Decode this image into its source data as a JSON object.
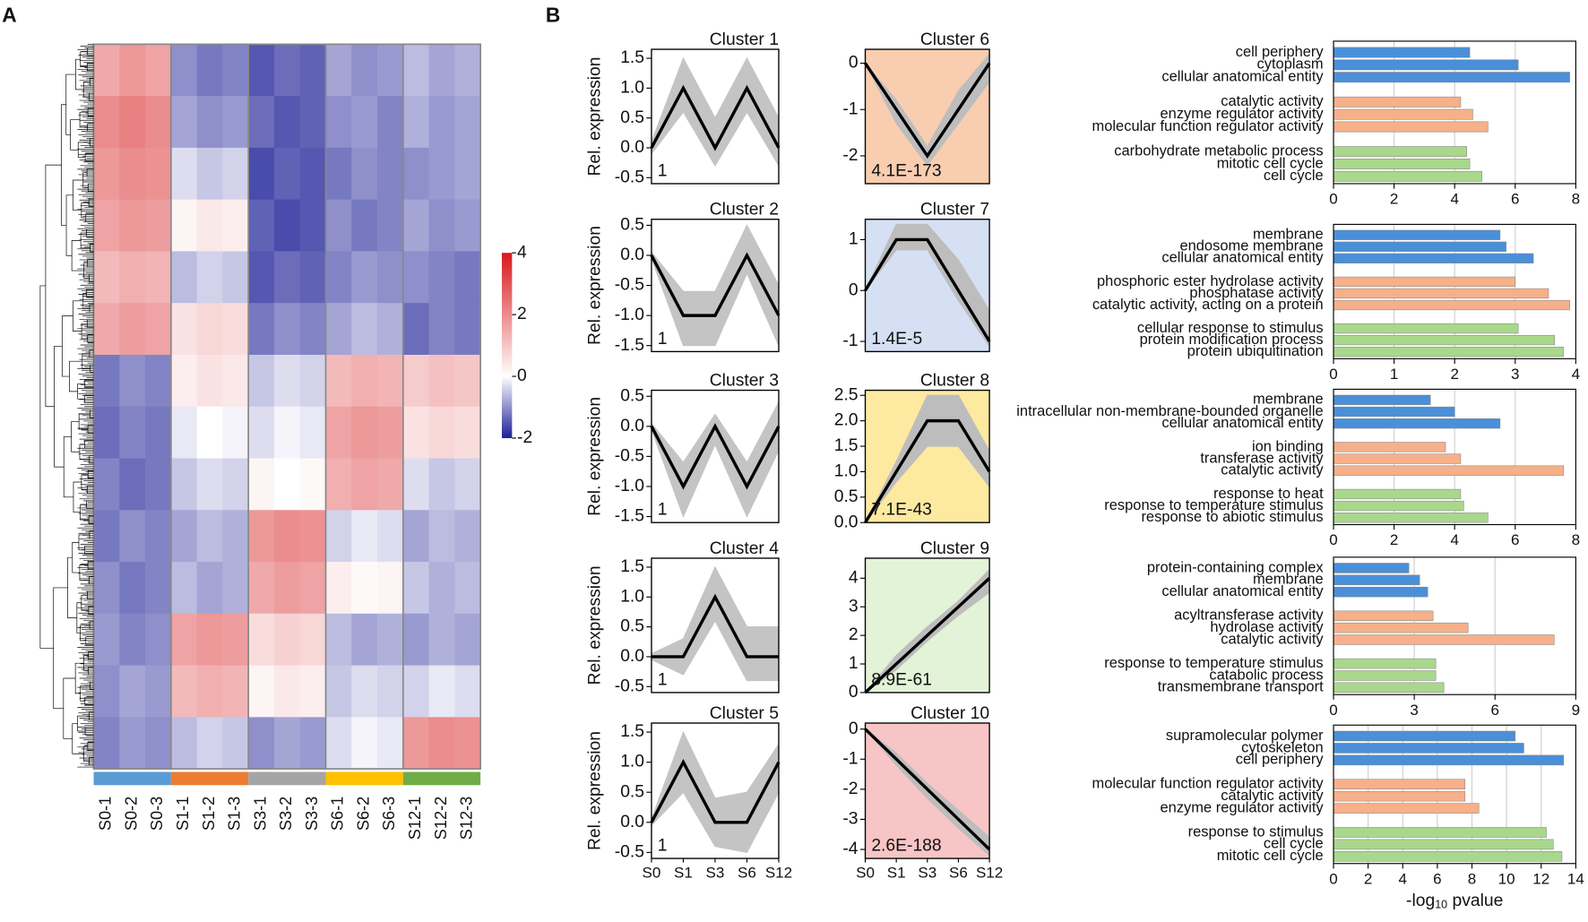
{
  "chart_data": [
    {
      "type": "heatmap",
      "panel": "A",
      "columns": [
        "S0-1",
        "S0-2",
        "S0-3",
        "S1-1",
        "S1-2",
        "S1-3",
        "S3-1",
        "S3-2",
        "S3-3",
        "S6-1",
        "S6-2",
        "S6-3",
        "S12-1",
        "S12-2",
        "S12-3"
      ],
      "group_colors": [
        "#5b9bd5",
        "#ed7d31",
        "#a5a5a5",
        "#ffc000",
        "#70ad47"
      ],
      "colors": [
        "#1c1f96",
        "#ffffff",
        "#d7191c"
      ],
      "clim": [
        -2,
        4
      ],
      "cticks": [
        4,
        2,
        0,
        -2
      ],
      "values": [
        [
          1.5,
          1.8,
          1.6,
          -1,
          -1.2,
          -1.1,
          -1.5,
          -1.3,
          -1.4,
          -0.8,
          -1,
          -0.9,
          -0.6,
          -0.8,
          -0.7
        ],
        [
          2,
          2.2,
          2,
          -0.8,
          -1,
          -0.9,
          -1.3,
          -1.5,
          -1.4,
          -1,
          -0.9,
          -1.1,
          -0.7,
          -0.9,
          -0.8
        ],
        [
          1.8,
          2,
          1.9,
          -0.3,
          -0.5,
          -0.4,
          -1.6,
          -1.4,
          -1.5,
          -1.2,
          -1,
          -1.1,
          -1,
          -0.9,
          -0.8
        ],
        [
          1.6,
          1.8,
          1.7,
          0.2,
          0.4,
          0.3,
          -1.4,
          -1.6,
          -1.5,
          -1,
          -1.2,
          -1.1,
          -0.8,
          -1,
          -0.9
        ],
        [
          1.2,
          1.4,
          1.3,
          -0.6,
          -0.4,
          -0.5,
          -1.5,
          -1.3,
          -1.4,
          -1.1,
          -0.9,
          -1,
          -1,
          -1.1,
          -1.2
        ],
        [
          1.5,
          1.7,
          1.6,
          0.5,
          0.7,
          0.6,
          -1.2,
          -1,
          -1.1,
          -0.8,
          -0.6,
          -0.7,
          -1.3,
          -1.1,
          -1.2
        ],
        [
          -1.2,
          -1,
          -1.1,
          0.3,
          0.5,
          0.4,
          -0.5,
          -0.3,
          -0.4,
          1.2,
          1.4,
          1.3,
          0.9,
          1.1,
          1
        ],
        [
          -1.3,
          -1.1,
          -1.2,
          -0.2,
          0,
          -0.1,
          -0.3,
          -0.1,
          -0.2,
          1.6,
          1.8,
          1.7,
          0.5,
          0.7,
          0.6
        ],
        [
          -1.1,
          -1.3,
          -1.2,
          -0.5,
          -0.3,
          -0.4,
          0.2,
          0,
          0.1,
          1.4,
          1.6,
          1.5,
          -0.3,
          -0.5,
          -0.4
        ],
        [
          -1.2,
          -1,
          -1.1,
          -0.8,
          -0.6,
          -0.7,
          1.8,
          2,
          1.9,
          -0.4,
          -0.2,
          -0.3,
          -0.8,
          -0.6,
          -0.7
        ],
        [
          -1,
          -1.2,
          -1.1,
          -0.6,
          -0.8,
          -0.7,
          1.5,
          1.7,
          1.6,
          0.3,
          0.1,
          0.2,
          -0.5,
          -0.7,
          -0.6
        ],
        [
          -0.9,
          -1.1,
          -1,
          1.6,
          1.8,
          1.7,
          0.6,
          0.8,
          0.7,
          -0.6,
          -0.8,
          -0.7,
          -0.9,
          -0.7,
          -0.8
        ],
        [
          -1,
          -0.8,
          -0.9,
          1.2,
          1.4,
          1.3,
          0.2,
          0.4,
          0.3,
          -0.5,
          -0.3,
          -0.4,
          -0.4,
          -0.2,
          -0.3
        ],
        [
          -1.1,
          -0.9,
          -1,
          -0.6,
          -0.4,
          -0.5,
          -1,
          -0.8,
          -0.9,
          -0.3,
          -0.1,
          -0.2,
          1.8,
          2,
          1.9
        ]
      ]
    },
    {
      "type": "line",
      "panel": "B",
      "title": "Cluster 1",
      "ylabel": "Rel. expression",
      "annotation": "1",
      "background": "#ffffff",
      "color": "#000000",
      "band_color": "#c4c4c4",
      "values": [
        0,
        1,
        0,
        1,
        0
      ],
      "band_low": [
        -0.1,
        0.6,
        -0.3,
        0.6,
        -0.3
      ],
      "band_high": [
        0.1,
        1.5,
        0.5,
        1.5,
        0.5
      ],
      "ylim": [
        -0.6,
        1.65
      ],
      "yticks": [
        {
          "value": -0.5,
          "label": "-0.5"
        },
        {
          "value": 0,
          "label": "0.0"
        },
        0.5,
        {
          "value": 1,
          "label": "1.0"
        },
        1.5
      ]
    },
    {
      "type": "line",
      "title": "Cluster 2",
      "ylabel": "Rel. expression",
      "annotation": "1",
      "background": "#ffffff",
      "color": "#000000",
      "band_color": "#c4c4c4",
      "values": [
        0,
        -1,
        -1,
        0,
        -1
      ],
      "band_low": [
        -0.05,
        -1.5,
        -1.5,
        -0.3,
        -1.5
      ],
      "band_high": [
        0.05,
        -0.6,
        -0.6,
        0.5,
        -0.5
      ],
      "ylim": [
        -1.6,
        0.6
      ],
      "yticks": [
        0.5,
        {
          "value": 0,
          "label": "0.0"
        },
        -0.5,
        {
          "value": -1,
          "label": "-1.0"
        },
        -1.5
      ]
    },
    {
      "type": "line",
      "title": "Cluster 3",
      "ylabel": "Rel. expression",
      "annotation": "1",
      "background": "#ffffff",
      "color": "#000000",
      "band_color": "#c4c4c4",
      "values": [
        0,
        -1,
        0,
        -1,
        0
      ],
      "band_low": [
        -0.05,
        -1.5,
        -0.3,
        -1.5,
        -0.4
      ],
      "band_high": [
        0.05,
        -0.6,
        0.2,
        -0.6,
        0.4
      ],
      "ylim": [
        -1.6,
        0.6
      ],
      "yticks": [
        0.5,
        {
          "value": 0,
          "label": "0.0"
        },
        -0.5,
        {
          "value": -1,
          "label": "-1.0"
        },
        -1.5
      ]
    },
    {
      "type": "line",
      "title": "Cluster 4",
      "ylabel": "Rel. expression",
      "annotation": "1",
      "background": "#ffffff",
      "color": "#000000",
      "band_color": "#c4c4c4",
      "values": [
        0,
        0,
        1,
        0,
        0
      ],
      "band_low": [
        -0.05,
        -0.3,
        0.6,
        -0.4,
        -0.4
      ],
      "band_high": [
        0.05,
        0.3,
        1.5,
        0.5,
        0.5
      ],
      "ylim": [
        -0.6,
        1.65
      ],
      "yticks": [
        {
          "value": -0.5,
          "label": "-0.5"
        },
        {
          "value": 0,
          "label": "0.0"
        },
        0.5,
        {
          "value": 1,
          "label": "1.0"
        },
        1.5
      ]
    },
    {
      "type": "line",
      "title": "Cluster 5",
      "ylabel": "Rel. expression",
      "annotation": "1",
      "background": "#ffffff",
      "color": "#000000",
      "band_color": "#c4c4c4",
      "categories": [
        "S0",
        "S1",
        "S3",
        "S6",
        "S12"
      ],
      "values": [
        0,
        1,
        0,
        0,
        1
      ],
      "band_low": [
        -0.05,
        0.5,
        -0.4,
        -0.5,
        0.5
      ],
      "band_high": [
        0.05,
        1.5,
        0.4,
        0.5,
        1.3
      ],
      "ylim": [
        -0.6,
        1.65
      ],
      "yticks": [
        {
          "value": -0.5,
          "label": "-0.5"
        },
        {
          "value": 0,
          "label": "0.0"
        },
        0.5,
        {
          "value": 1,
          "label": "1.0"
        },
        1.5
      ]
    },
    {
      "type": "line",
      "title": "Cluster 6",
      "annotation": "4.1E-173",
      "background": "#f9cdb0",
      "color": "#000000",
      "band_color": "#bdbdbd",
      "values": [
        0,
        -1,
        -2,
        -1,
        0
      ],
      "band_low": [
        0,
        -1.3,
        -2.2,
        -1.3,
        -0.4
      ],
      "band_high": [
        0,
        -0.8,
        -1.8,
        -0.6,
        0.2
      ],
      "ylim": [
        -2.6,
        0.3
      ],
      "yticks": [
        0,
        -1,
        -2
      ]
    },
    {
      "type": "line",
      "title": "Cluster 7",
      "annotation": "1.4E-5",
      "background": "#d6e0f5",
      "color": "#000000",
      "band_color": "#bdbdbd",
      "values": [
        0,
        1,
        1,
        0,
        -1
      ],
      "band_low": [
        0,
        0.8,
        0.8,
        -0.2,
        -1.1
      ],
      "band_high": [
        0,
        1.3,
        1.3,
        0.6,
        -0.4
      ],
      "ylim": [
        -1.2,
        1.4
      ],
      "yticks": [
        1,
        0,
        -1
      ]
    },
    {
      "type": "line",
      "title": "Cluster 8",
      "annotation": "7.1E-43",
      "background": "#fde9a0",
      "color": "#000000",
      "band_color": "#bdbdbd",
      "values": [
        0,
        1,
        2,
        2,
        1
      ],
      "band_low": [
        0,
        0.8,
        1.5,
        1.5,
        0.7
      ],
      "band_high": [
        0,
        1.2,
        2.5,
        2.5,
        1.4
      ],
      "ylim": [
        0,
        2.6
      ],
      "yticks": [
        {
          "value": 0,
          "label": "0.0"
        },
        0.5,
        {
          "value": 1,
          "label": "1.0"
        },
        1.5,
        {
          "value": 2,
          "label": "2.0"
        },
        2.5
      ]
    },
    {
      "type": "line",
      "title": "Cluster 9",
      "annotation": "8.9E-61",
      "background": "#e3f3d8",
      "color": "#000000",
      "band_color": "#bdbdbd",
      "values": [
        0,
        1,
        2,
        3,
        4
      ],
      "band_low": [
        0,
        0.8,
        1.8,
        2.7,
        3.5
      ],
      "band_high": [
        0,
        1.3,
        2.3,
        3.2,
        4.3
      ],
      "ylim": [
        0,
        4.7
      ],
      "yticks": [
        0,
        1,
        2,
        3,
        4
      ]
    },
    {
      "type": "line",
      "title": "Cluster 10",
      "annotation": "2.6E-188",
      "background": "#f7c5c5",
      "color": "#000000",
      "band_color": "#bdbdbd",
      "categories": [
        "S0",
        "S1",
        "S3",
        "S6",
        "S12"
      ],
      "values": [
        0,
        -1,
        -2,
        -3,
        -4
      ],
      "band_low": [
        0,
        -1.2,
        -2.3,
        -3.3,
        -4.2
      ],
      "band_high": [
        0,
        -0.8,
        -1.8,
        -2.7,
        -3.6
      ],
      "ylim": [
        -4.3,
        0.2
      ],
      "yticks": [
        0,
        -1,
        -2,
        -3,
        -4
      ]
    },
    {
      "type": "barh",
      "grid": true,
      "xlim": [
        0,
        8
      ],
      "xticks": [
        0,
        2,
        4,
        6,
        8
      ],
      "groups": [
        {
          "color": "#4a8fd8",
          "categories": [
            "cell periphery",
            "cytoplasm",
            "cellular anatomical entity"
          ],
          "values": [
            4.5,
            6.1,
            7.8
          ]
        },
        {
          "color": "#f6b08a",
          "categories": [
            "catalytic activity",
            "enzyme regulator activity",
            "molecular function regulator activity"
          ],
          "values": [
            4.2,
            4.6,
            5.1
          ]
        },
        {
          "color": "#a9d88c",
          "categories": [
            "carbohydrate metabolic process",
            "mitotic cell cycle",
            "cell cycle"
          ],
          "values": [
            4.4,
            4.5,
            4.9
          ]
        }
      ]
    },
    {
      "type": "barh",
      "grid": true,
      "xlim": [
        0,
        4
      ],
      "xticks": [
        0,
        1,
        2,
        3,
        4
      ],
      "groups": [
        {
          "color": "#4a8fd8",
          "categories": [
            "membrane",
            "endosome membrane",
            "cellular anatomical entity"
          ],
          "values": [
            2.75,
            2.85,
            3.3
          ]
        },
        {
          "color": "#f6b08a",
          "categories": [
            "phosphoric ester hydrolase activity",
            "phosphatase activity",
            "catalytic activity, acting on a protein"
          ],
          "values": [
            3.0,
            3.55,
            3.9
          ]
        },
        {
          "color": "#a9d88c",
          "categories": [
            "cellular response to stimulus",
            "protein modification process",
            "protein ubiquitination"
          ],
          "values": [
            3.05,
            3.65,
            3.8
          ]
        }
      ]
    },
    {
      "type": "barh",
      "grid": true,
      "xlim": [
        0,
        8
      ],
      "xticks": [
        0,
        2,
        4,
        6,
        8
      ],
      "groups": [
        {
          "color": "#4a8fd8",
          "categories": [
            "membrane",
            "intracellular non-membrane-bounded organelle",
            "cellular anatomical entity"
          ],
          "values": [
            3.2,
            4.0,
            5.5
          ]
        },
        {
          "color": "#f6b08a",
          "categories": [
            "ion binding",
            "transferase activity",
            "catalytic activity"
          ],
          "values": [
            3.7,
            4.2,
            7.6
          ]
        },
        {
          "color": "#a9d88c",
          "categories": [
            "response to heat",
            "response to temperature stimulus",
            "response to abiotic stimulus"
          ],
          "values": [
            4.2,
            4.3,
            5.1
          ]
        }
      ]
    },
    {
      "type": "barh",
      "grid": true,
      "xlim": [
        0,
        9
      ],
      "xticks": [
        0,
        3,
        6,
        9
      ],
      "groups": [
        {
          "color": "#4a8fd8",
          "categories": [
            "protein-containing complex",
            "membrane",
            "cellular anatomical entity"
          ],
          "values": [
            2.8,
            3.2,
            3.5
          ]
        },
        {
          "color": "#f6b08a",
          "categories": [
            "acyltransferase activity",
            "hydrolase activity",
            "catalytic activity"
          ],
          "values": [
            3.7,
            5.0,
            8.2
          ]
        },
        {
          "color": "#a9d88c",
          "categories": [
            "response to temperature stimulus",
            "catabolic process",
            "transmembrane transport"
          ],
          "values": [
            3.8,
            3.8,
            4.1
          ]
        }
      ]
    },
    {
      "type": "barh",
      "grid": true,
      "xlim": [
        0,
        14
      ],
      "xticks": [
        0,
        2,
        4,
        6,
        8,
        10,
        12,
        14
      ],
      "xlabel": [
        "-log",
        "10",
        " pvalue"
      ],
      "groups": [
        {
          "color": "#4a8fd8",
          "categories": [
            "supramolecular polymer",
            "cytoskeleton",
            "cell periphery"
          ],
          "values": [
            10.5,
            11.0,
            13.3
          ]
        },
        {
          "color": "#f6b08a",
          "categories": [
            "molecular function regulator activity",
            "catalytic activity",
            "enzyme regulator activity"
          ],
          "values": [
            7.6,
            7.6,
            8.4
          ]
        },
        {
          "color": "#a9d88c",
          "categories": [
            "response to stimulus",
            "cell cycle",
            "mitotic cell cycle"
          ],
          "values": [
            12.3,
            12.7,
            13.2
          ]
        }
      ]
    }
  ]
}
